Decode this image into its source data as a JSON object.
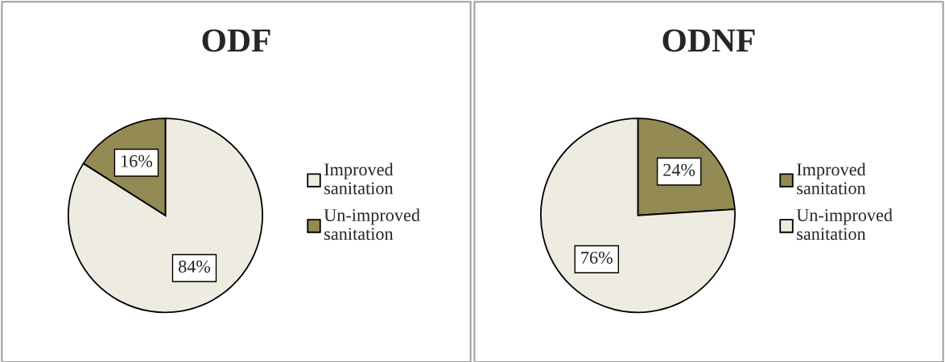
{
  "chart_data": [
    {
      "type": "pie",
      "title": "ODF",
      "categories": [
        "Improved sanitation",
        "Un-improved sanitation"
      ],
      "values": [
        84,
        16
      ],
      "colors": [
        "#eeece1",
        "#948a54"
      ],
      "value_labels": [
        "84%",
        "16%"
      ],
      "legend": "right"
    },
    {
      "type": "pie",
      "title": "ODNF",
      "categories": [
        "Improved sanitation",
        "Un-improved sanitation"
      ],
      "values": [
        24,
        76
      ],
      "colors": [
        "#948a54",
        "#eeece1"
      ],
      "value_labels": [
        "24%",
        "76%"
      ],
      "legend": "right"
    }
  ]
}
